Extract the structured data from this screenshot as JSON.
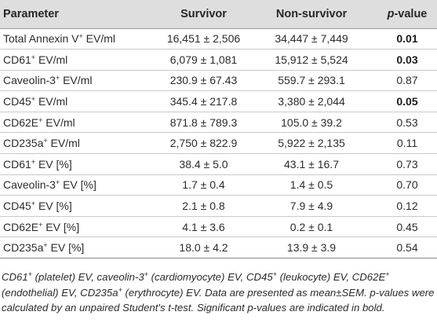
{
  "header": {
    "parameter": "Parameter",
    "survivor": "Survivor",
    "non_survivor": "Non-survivor",
    "pvalue_italic": "p",
    "pvalue_rest": "-value"
  },
  "rows": [
    {
      "pre": "Total Annexin V",
      "sup": "+",
      "post": " EV/ml",
      "survivor": "16,451 ± 2,506",
      "non_survivor": "34,447 ± 7,449",
      "p": "0.01",
      "significant": true
    },
    {
      "pre": "CD61",
      "sup": "+",
      "post": " EV/ml",
      "survivor": "6,079 ± 1,081",
      "non_survivor": "15,912 ± 5,524",
      "p": "0.03",
      "significant": true
    },
    {
      "pre": "Caveolin-3",
      "sup": "+",
      "post": " EV/ml",
      "survivor": "230.9 ± 67.43",
      "non_survivor": "559.7 ± 293.1",
      "p": "0.87",
      "significant": false
    },
    {
      "pre": "CD45",
      "sup": "+",
      "post": " EV/ml",
      "survivor": "345.4 ± 217.8",
      "non_survivor": "3,380 ± 2,044",
      "p": "0.05",
      "significant": true
    },
    {
      "pre": "CD62E",
      "sup": "+",
      "post": " EV/ml",
      "survivor": "871.8 ± 789.3",
      "non_survivor": "105.0 ± 39.2",
      "p": "0.53",
      "significant": false
    },
    {
      "pre": "CD235a",
      "sup": "+",
      "post": " EV/ml",
      "survivor": "2,750 ± 822.9",
      "non_survivor": "5,922 ± 2,135",
      "p": "0.11",
      "significant": false
    },
    {
      "pre": "CD61",
      "sup": "+",
      "post": " EV [%]",
      "survivor": "38.4 ± 5.0",
      "non_survivor": "43.1 ± 16.7",
      "p": "0.73",
      "significant": false
    },
    {
      "pre": "Caveolin-3",
      "sup": "+",
      "post": " EV [%]",
      "survivor": "1.7 ± 0.4",
      "non_survivor": "1.4 ± 0.5",
      "p": "0.70",
      "significant": false
    },
    {
      "pre": "CD45",
      "sup": "+",
      "post": " EV [%]",
      "survivor": "2.1 ± 0.8",
      "non_survivor": "7.9 ± 4.9",
      "p": "0.12",
      "significant": false
    },
    {
      "pre": "CD62E",
      "sup": "+",
      "post": " EV [%]",
      "survivor": "4.1 ± 3.6",
      "non_survivor": "0.2 ± 0.1",
      "p": "0.45",
      "significant": false
    },
    {
      "pre": "CD235a",
      "sup": "+",
      "post": " EV [%]",
      "survivor": "18.0 ± 4.2",
      "non_survivor": "13.9 ± 3.9",
      "p": "0.54",
      "significant": false
    }
  ],
  "footnote": {
    "s1": "CD61",
    "s2": " (platelet) EV, caveolin-3",
    "s3": " (cardiomyocyte) EV, CD45",
    "s4": " (leukocyte) EV, CD62E",
    "s5": " (endothelial) EV, CD235a",
    "s6": " (erythrocyte) EV. Data are presented as mean±SEM. p-values were calculated by an unpaired Student's t-test. Significant p-values are indicated in bold.",
    "plus": "+"
  }
}
